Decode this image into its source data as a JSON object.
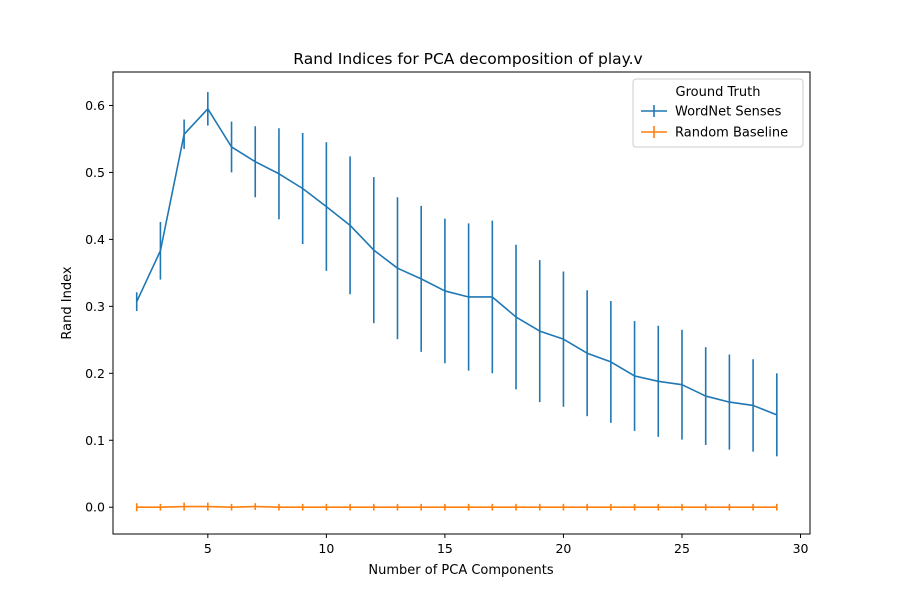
{
  "chart_data": {
    "type": "line",
    "title": "Rand Indices for PCA decomposition of play.v",
    "xlabel": "Number of PCA Components",
    "ylabel": "Rand Index",
    "xlim": [
      1,
      30.4
    ],
    "ylim": [
      -0.04,
      0.65
    ],
    "xticks": [
      5,
      10,
      15,
      20,
      25,
      30
    ],
    "xtick_labels": [
      "5",
      "10",
      "15",
      "20",
      "25",
      "30"
    ],
    "yticks": [
      0.0,
      0.1,
      0.2,
      0.3,
      0.4,
      0.5,
      0.6
    ],
    "ytick_labels": [
      "0.0",
      "0.1",
      "0.2",
      "0.3",
      "0.4",
      "0.5",
      "0.6"
    ],
    "grid": false,
    "legend_title": "Ground Truth",
    "legend_position": "top-right",
    "x": [
      2,
      3,
      4,
      5,
      6,
      7,
      8,
      9,
      10,
      11,
      12,
      13,
      14,
      15,
      16,
      17,
      18,
      19,
      20,
      21,
      22,
      23,
      24,
      25,
      26,
      27,
      28,
      29
    ],
    "series": [
      {
        "name": "WordNet Senses",
        "color": "#1f77b4",
        "values": [
          0.307,
          0.383,
          0.557,
          0.595,
          0.538,
          0.516,
          0.498,
          0.476,
          0.449,
          0.421,
          0.384,
          0.357,
          0.341,
          0.323,
          0.314,
          0.314,
          0.284,
          0.263,
          0.251,
          0.23,
          0.217,
          0.196,
          0.188,
          0.183,
          0.166,
          0.157,
          0.152,
          0.138
        ],
        "errors": [
          0.014,
          0.043,
          0.022,
          0.025,
          0.038,
          0.053,
          0.068,
          0.083,
          0.096,
          0.103,
          0.109,
          0.106,
          0.109,
          0.108,
          0.11,
          0.114,
          0.108,
          0.106,
          0.101,
          0.094,
          0.091,
          0.082,
          0.083,
          0.082,
          0.073,
          0.071,
          0.069,
          0.062
        ]
      },
      {
        "name": "Random Baseline",
        "color": "#ff7f0e",
        "values": [
          0.0,
          0.0,
          0.001,
          0.001,
          0.0,
          0.001,
          0.0,
          0.0,
          0.0,
          0.0,
          0.0,
          0.0,
          0.0,
          0.0,
          0.0,
          0.0,
          0.0,
          0.0,
          0.0,
          0.0,
          0.0,
          0.0,
          0.0,
          0.0,
          0.0,
          0.0,
          0.0,
          0.0
        ],
        "errors": [
          0.006,
          0.005,
          0.006,
          0.006,
          0.005,
          0.005,
          0.005,
          0.005,
          0.005,
          0.005,
          0.005,
          0.005,
          0.005,
          0.005,
          0.005,
          0.005,
          0.005,
          0.005,
          0.005,
          0.005,
          0.005,
          0.005,
          0.005,
          0.005,
          0.005,
          0.005,
          0.005,
          0.005
        ]
      }
    ]
  }
}
